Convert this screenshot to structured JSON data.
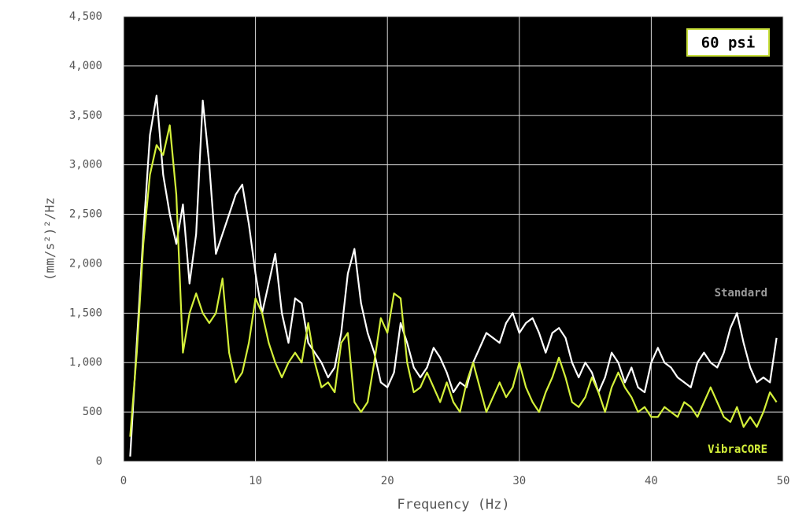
{
  "chart_data": {
    "type": "line",
    "y_label": "(mm/s²)²/Hz",
    "x_label": "Frequency (Hz)",
    "annotation": "60 psi",
    "xlim": [
      0,
      50
    ],
    "xticks": [
      0,
      10,
      20,
      30,
      40,
      50
    ],
    "ylim": [
      0,
      4500
    ],
    "yticks": [
      0,
      500,
      {
        "value": 1000,
        "label": "1,000"
      },
      {
        "value": 1500,
        "label": "1,500"
      },
      {
        "value": 2000,
        "label": "2,000"
      },
      {
        "value": 2500,
        "label": "2,500"
      },
      {
        "value": 3000,
        "label": "3,000"
      },
      {
        "value": 3500,
        "label": "3,500"
      },
      {
        "value": 4000,
        "label": "4,000"
      },
      {
        "value": 4500,
        "label": "4,500"
      }
    ],
    "grid": true,
    "x": [
      0.5,
      1,
      1.5,
      2,
      2.5,
      3,
      3.5,
      4,
      4.5,
      5,
      5.5,
      6,
      6.5,
      7,
      7.5,
      8,
      8.5,
      9,
      9.5,
      10,
      10.5,
      11,
      11.5,
      12,
      12.5,
      13,
      13.5,
      14,
      14.5,
      15,
      15.5,
      16,
      16.5,
      17,
      17.5,
      18,
      18.5,
      19,
      19.5,
      20,
      20.5,
      21,
      21.5,
      22,
      22.5,
      23,
      23.5,
      24,
      24.5,
      25,
      25.5,
      26,
      26.5,
      27,
      27.5,
      28,
      28.5,
      29,
      29.5,
      30,
      30.5,
      31,
      31.5,
      32,
      32.5,
      33,
      33.5,
      34,
      34.5,
      35,
      35.5,
      36,
      36.5,
      37,
      37.5,
      38,
      38.5,
      39,
      39.5,
      40,
      40.5,
      41,
      41.5,
      42,
      42.5,
      43,
      43.5,
      44,
      44.5,
      45,
      45.5,
      46,
      46.5,
      47,
      47.5,
      48,
      48.5,
      49,
      49.5
    ],
    "series": [
      {
        "name": "Standard",
        "color": "#ffffff",
        "label_color": "#9a9a9a",
        "values": [
          50,
          1200,
          2300,
          3300,
          3700,
          2900,
          2500,
          2200,
          2600,
          1800,
          2300,
          3650,
          3000,
          2100,
          2300,
          2500,
          2700,
          2800,
          2400,
          1900,
          1500,
          1800,
          2100,
          1500,
          1200,
          1650,
          1600,
          1200,
          1100,
          1000,
          850,
          950,
          1300,
          1900,
          2150,
          1600,
          1300,
          1100,
          800,
          750,
          900,
          1400,
          1200,
          950,
          850,
          950,
          1150,
          1050,
          900,
          700,
          800,
          750,
          1000,
          1150,
          1300,
          1250,
          1200,
          1400,
          1500,
          1300,
          1400,
          1450,
          1300,
          1100,
          1300,
          1350,
          1250,
          1000,
          850,
          1000,
          900,
          700,
          850,
          1100,
          1000,
          800,
          950,
          750,
          700,
          1000,
          1150,
          1000,
          950,
          850,
          800,
          750,
          1000,
          1100,
          1000,
          950,
          1100,
          1350,
          1500,
          1200,
          950,
          800,
          850,
          800,
          1250
        ]
      },
      {
        "name": "VibraCORE",
        "color": "#d4f03a",
        "label_color": "#d4f03a",
        "values": [
          250,
          1100,
          2200,
          2900,
          3200,
          3100,
          3400,
          2700,
          1100,
          1500,
          1700,
          1500,
          1400,
          1500,
          1850,
          1100,
          800,
          900,
          1200,
          1650,
          1500,
          1200,
          1000,
          850,
          1000,
          1100,
          1000,
          1400,
          1000,
          750,
          800,
          700,
          1200,
          1300,
          600,
          500,
          600,
          1000,
          1450,
          1300,
          1700,
          1650,
          1000,
          700,
          750,
          900,
          750,
          600,
          800,
          600,
          500,
          800,
          1000,
          750,
          500,
          650,
          800,
          650,
          750,
          1000,
          750,
          600,
          500,
          700,
          850,
          1050,
          850,
          600,
          550,
          650,
          850,
          700,
          500,
          750,
          900,
          750,
          650,
          500,
          550,
          450,
          450,
          550,
          500,
          450,
          600,
          550,
          450,
          600,
          750,
          600,
          450,
          400,
          550,
          350,
          450,
          350,
          500,
          700,
          600
        ]
      }
    ]
  }
}
